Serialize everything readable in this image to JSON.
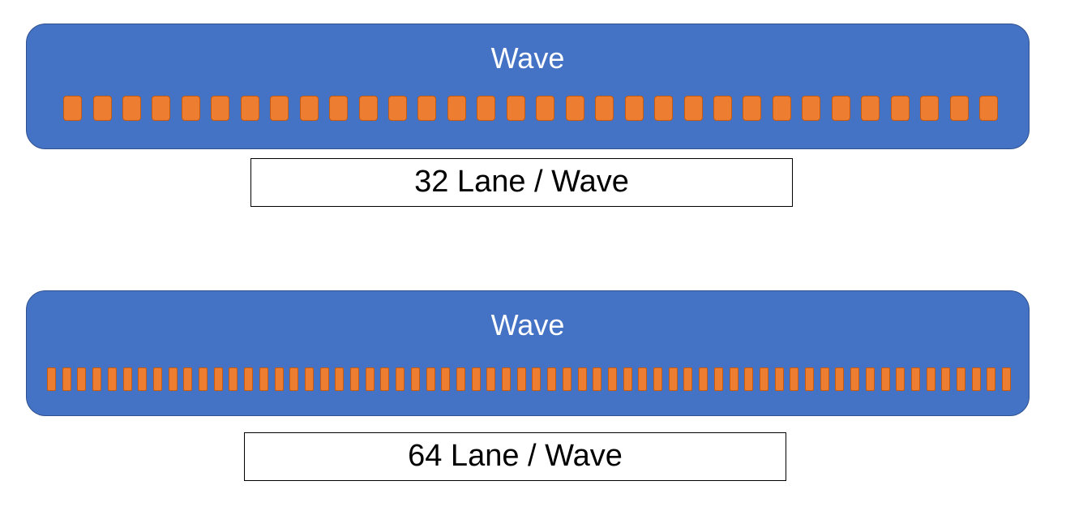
{
  "diagrams": [
    {
      "title": "Wave",
      "lane_count": 32,
      "caption": "32 Lane / Wave"
    },
    {
      "title": "Wave",
      "lane_count": 64,
      "caption": "64 Lane / Wave"
    }
  ],
  "colors": {
    "wave_fill": "#4472c4",
    "wave_border": "#2f528f",
    "lane_fill": "#ed7d31",
    "lane_border": "#c55a11",
    "caption_border": "#000000"
  }
}
